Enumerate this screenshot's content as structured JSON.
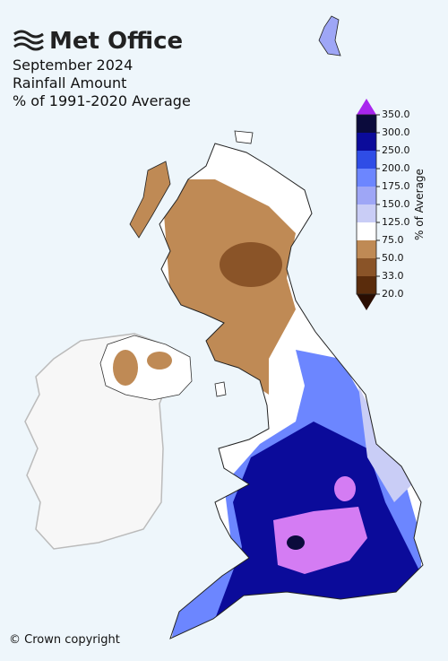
{
  "header": {
    "logo": "Met Office",
    "title_lines": [
      "September 2024",
      "Rainfall Amount",
      "% of 1991-2020 Average"
    ]
  },
  "colorbar": {
    "label": "% of Average",
    "ticks": [
      {
        "value": 20,
        "label": "20.0"
      },
      {
        "value": 33,
        "label": "33.0"
      },
      {
        "value": 50,
        "label": "50.0"
      },
      {
        "value": 75,
        "label": "75.0"
      },
      {
        "value": 125,
        "label": "125.0"
      },
      {
        "value": 150,
        "label": "150.0"
      },
      {
        "value": 175,
        "label": "175.0"
      },
      {
        "value": 200,
        "label": "200.0"
      },
      {
        "value": 250,
        "label": "250.0"
      },
      {
        "value": 300,
        "label": "300.0"
      },
      {
        "value": 350,
        "label": "350.0"
      }
    ],
    "colors": [
      "#5a2c0c",
      "#8a5428",
      "#bf8a55",
      "#ffffff",
      "#c9cdf6",
      "#9ea6f6",
      "#6c86ff",
      "#2f4de6",
      "#0b0b9a",
      "#0b0b3c",
      "#d47cf3"
    ],
    "under_color": "#2a0e02",
    "over_color": "#a826ee"
  },
  "footer": {
    "copyright": "© Crown copyright"
  }
}
